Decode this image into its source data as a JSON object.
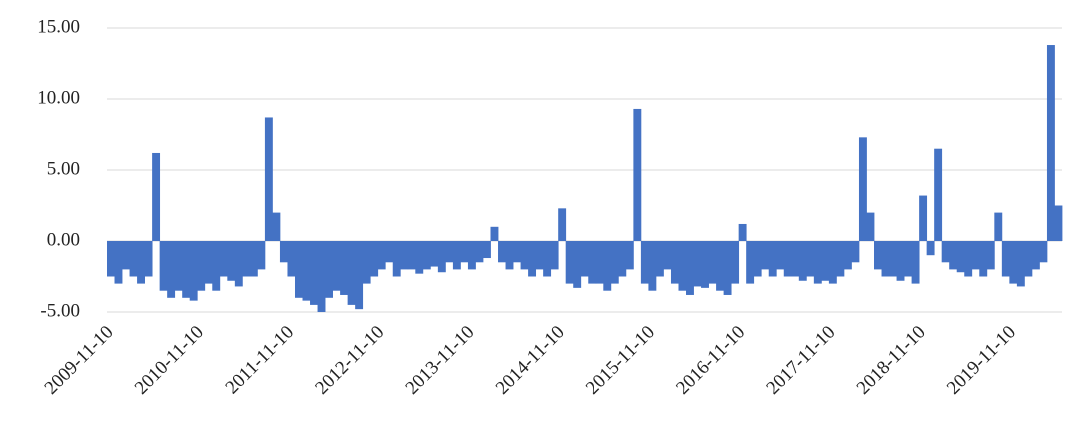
{
  "chart_data": {
    "type": "bar",
    "color": "#4472c4",
    "grid": true,
    "ylim": [
      -5,
      15
    ],
    "yticks": [
      {
        "value": -5,
        "label": "-5.00"
      },
      {
        "value": 0,
        "label": "0.00"
      },
      {
        "value": 5,
        "label": "5.00"
      },
      {
        "value": 10,
        "label": "10.00"
      },
      {
        "value": 15,
        "label": "15.00"
      }
    ],
    "categories": [
      "2009-11-10",
      null,
      null,
      null,
      null,
      null,
      null,
      null,
      null,
      null,
      null,
      null,
      "2010-11-10",
      null,
      null,
      null,
      null,
      null,
      null,
      null,
      null,
      null,
      null,
      null,
      "2011-11-10",
      null,
      null,
      null,
      null,
      null,
      null,
      null,
      null,
      null,
      null,
      null,
      "2012-11-10",
      null,
      null,
      null,
      null,
      null,
      null,
      null,
      null,
      null,
      null,
      null,
      "2013-11-10",
      null,
      null,
      null,
      null,
      null,
      null,
      null,
      null,
      null,
      null,
      null,
      "2014-11-10",
      null,
      null,
      null,
      null,
      null,
      null,
      null,
      null,
      null,
      null,
      null,
      "2015-11-10",
      null,
      null,
      null,
      null,
      null,
      null,
      null,
      null,
      null,
      null,
      null,
      "2016-11-10",
      null,
      null,
      null,
      null,
      null,
      null,
      null,
      null,
      null,
      null,
      null,
      "2017-11-10",
      null,
      null,
      null,
      null,
      null,
      null,
      null,
      null,
      null,
      null,
      null,
      "2018-11-10",
      null,
      null,
      null,
      null,
      null,
      null,
      null,
      null,
      null,
      null,
      null,
      "2019-11-10",
      null,
      null,
      null,
      null,
      null,
      null
    ],
    "values": [
      -2.5,
      -3,
      -2,
      -2.5,
      -3,
      -2.5,
      6.2,
      -3.5,
      -4,
      -3.5,
      -4,
      -4.2,
      -3.5,
      -3,
      -3.5,
      -2.5,
      -2.8,
      -3.2,
      -2.5,
      -2.5,
      -2,
      8.7,
      2,
      -1.5,
      -2.5,
      -4,
      -4.2,
      -4.5,
      -5,
      -4,
      -3.5,
      -3.8,
      -4.5,
      -4.8,
      -3,
      -2.5,
      -2,
      -1.5,
      -2.5,
      -2,
      -2,
      -2.3,
      -2,
      -1.8,
      -2.2,
      -1.5,
      -2,
      -1.5,
      -2,
      -1.5,
      -1.2,
      1,
      -1.5,
      -2,
      -1.5,
      -2,
      -2.5,
      -2,
      -2.5,
      -2,
      2.3,
      -3,
      -3.3,
      -2.5,
      -3,
      -3,
      -3.5,
      -3,
      -2.5,
      -2,
      9.3,
      -3,
      -3.5,
      -2.5,
      -2,
      -3,
      -3.5,
      -3.8,
      -3.2,
      -3.3,
      -3,
      -3.5,
      -3.8,
      -3,
      1.2,
      -3,
      -2.5,
      -2,
      -2.5,
      -2,
      -2.5,
      -2.5,
      -2.8,
      -2.5,
      -3,
      -2.8,
      -3,
      -2.5,
      -2,
      -1.5,
      7.3,
      2,
      -2,
      -2.5,
      -2.5,
      -2.8,
      -2.5,
      -3,
      3.2,
      -1,
      6.5,
      -1.5,
      -2,
      -2.2,
      -2.5,
      -2,
      -2.5,
      -2,
      2,
      -2.5,
      -3,
      -3.2,
      -2.5,
      -2,
      -1.5,
      13.8,
      2.5
    ]
  }
}
